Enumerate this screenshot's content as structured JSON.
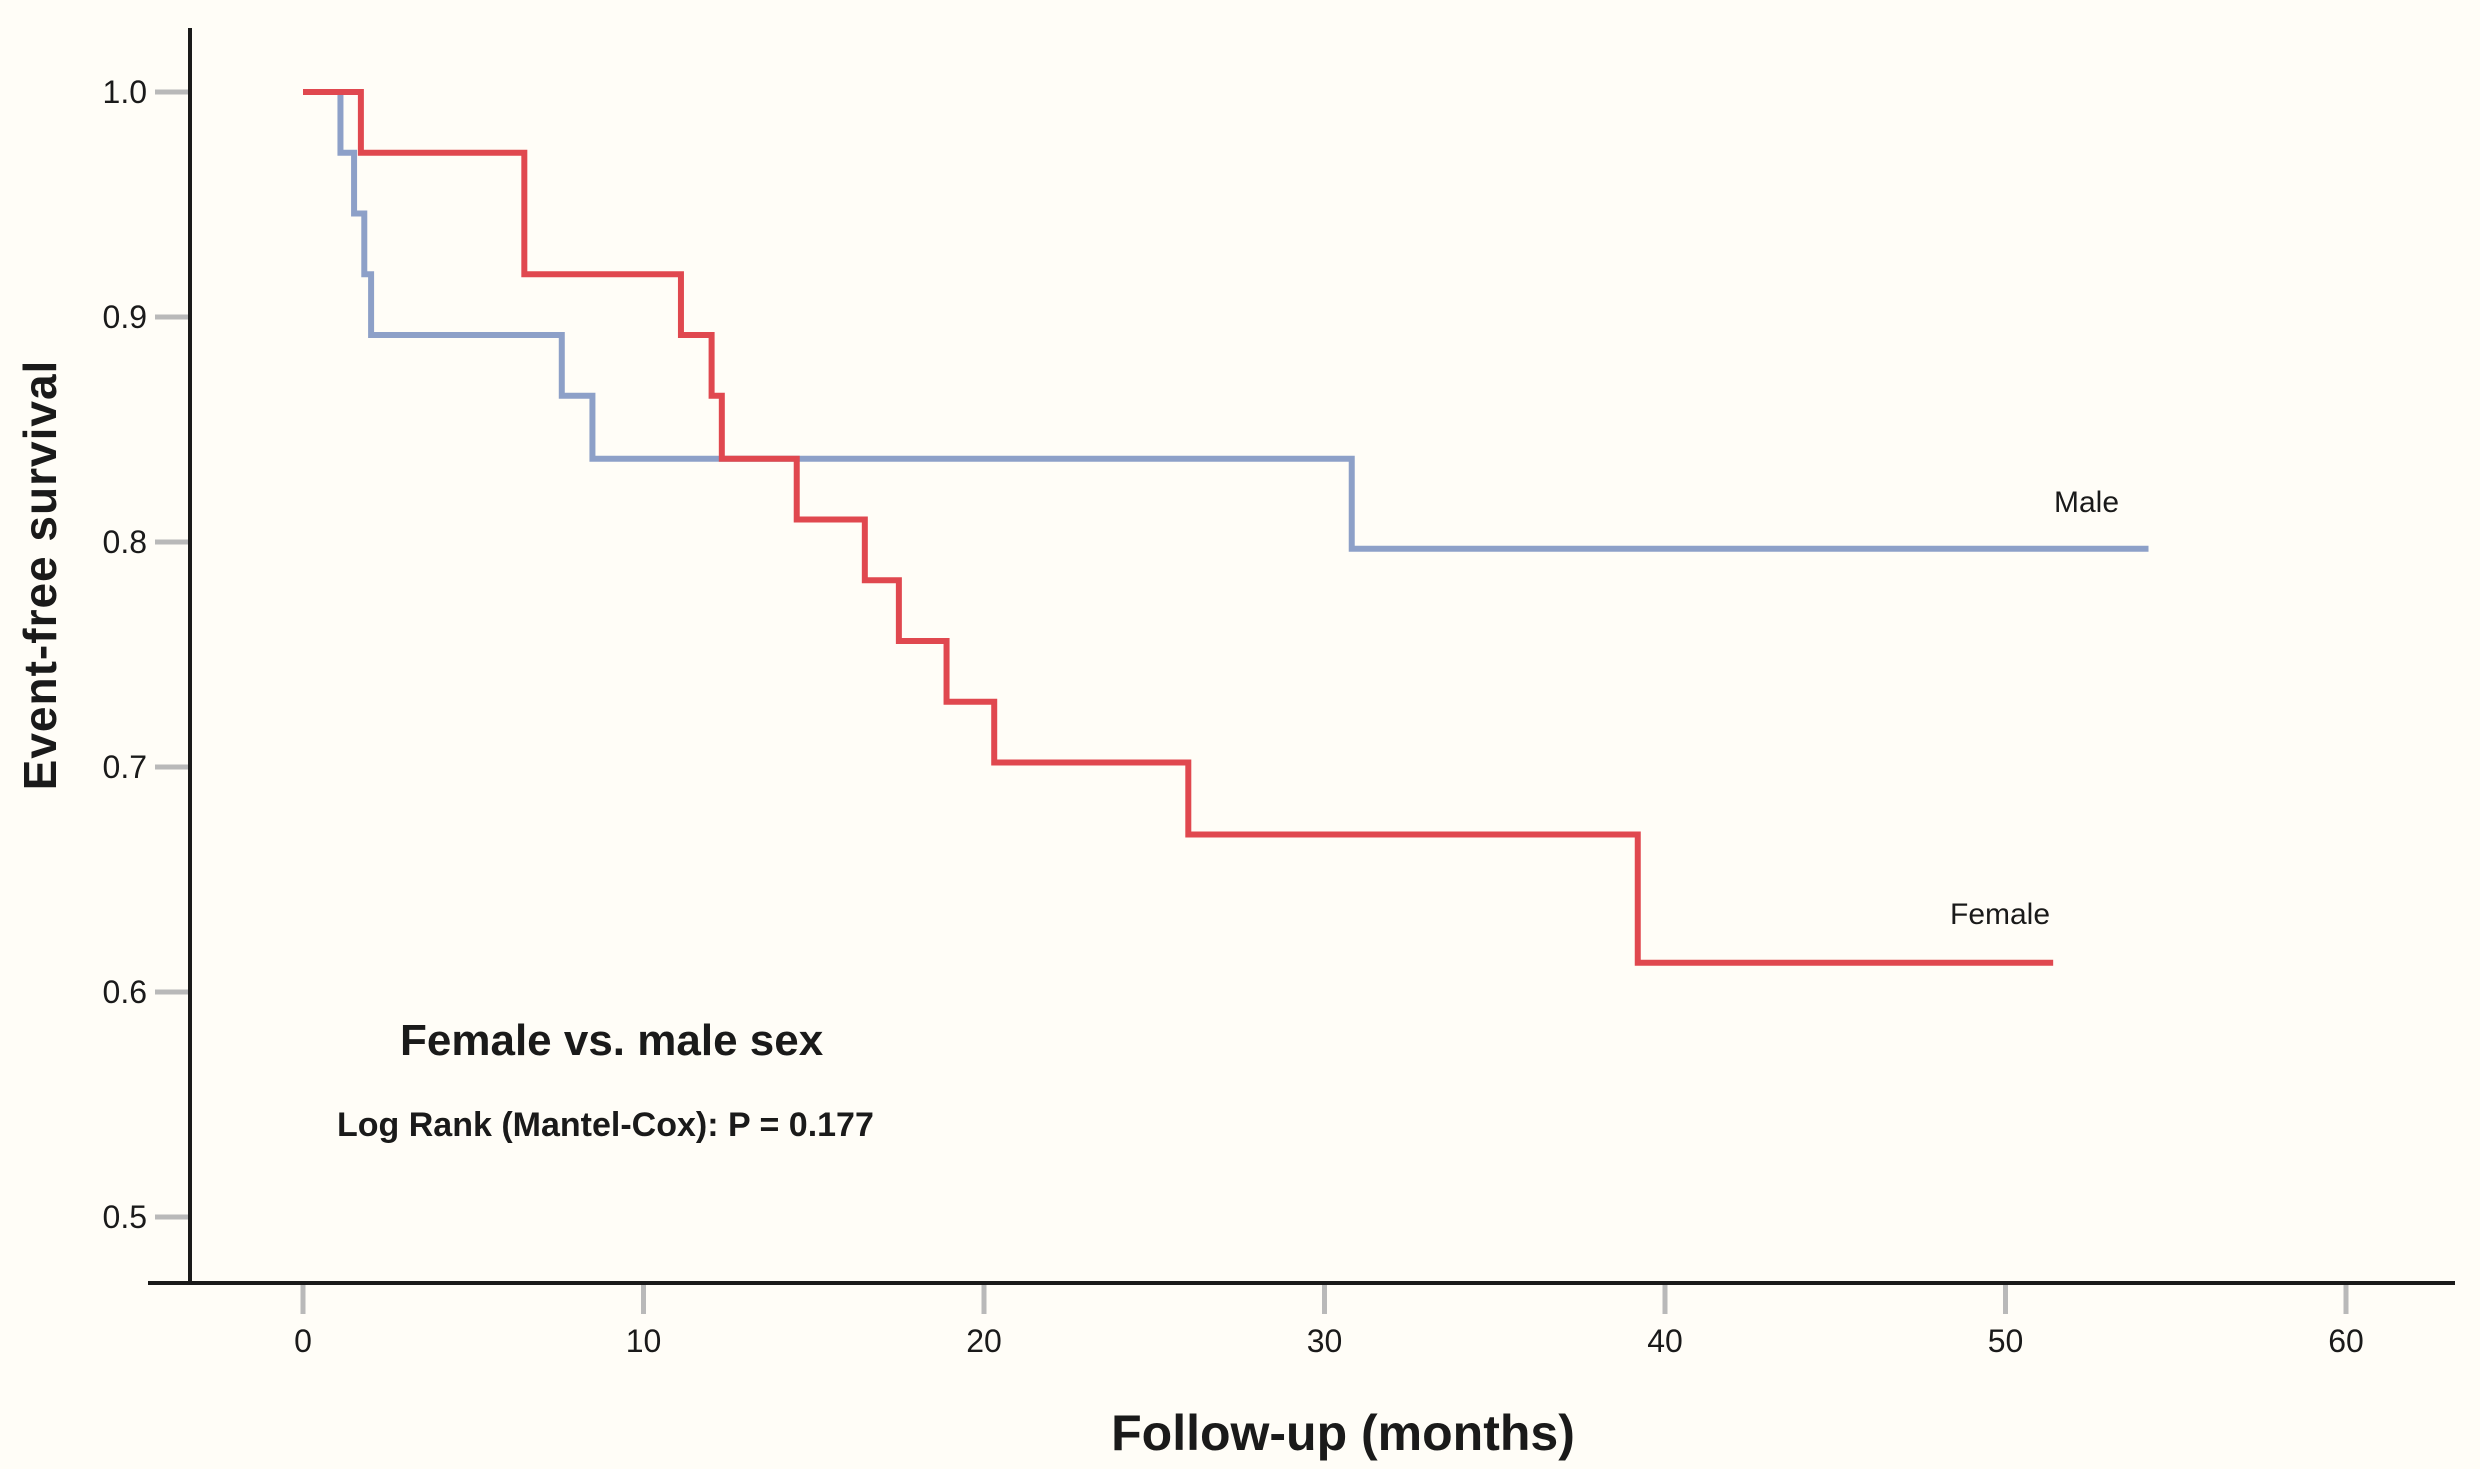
{
  "chart_data": {
    "type": "line",
    "subtype": "kaplan_meier_step",
    "title": "Female vs. male sex",
    "annotation": "Log Rank (Mantel-Cox): P = 0.177",
    "xlabel": "Follow-up (months)",
    "ylabel": "Event-free survival",
    "xlim": [
      -4.6,
      63.2
    ],
    "ylim": [
      0.468,
      1.028
    ],
    "grid": false,
    "legend_position": "inline labels at right end of each curve",
    "x_ticks": [
      {
        "label": "0",
        "value": 0
      },
      {
        "label": "10",
        "value": 10
      },
      {
        "label": "20",
        "value": 20
      },
      {
        "label": "30",
        "value": 30
      },
      {
        "label": "40",
        "value": 40
      },
      {
        "label": "50",
        "value": 50
      },
      {
        "label": "60",
        "value": 60
      }
    ],
    "y_ticks": [
      {
        "label": "1.0",
        "value": 1.0
      },
      {
        "label": "0.9",
        "value": 0.9
      },
      {
        "label": "0.8",
        "value": 0.8
      },
      {
        "label": "0.7",
        "value": 0.7
      },
      {
        "label": "0.6",
        "value": 0.6
      },
      {
        "label": "0.5",
        "value": 0.5
      }
    ],
    "colors": {
      "background": "#fffdf7",
      "axis": "#1a1a1a",
      "tick_marks": "#b9b9b9",
      "text": "#1a1a1a",
      "male": "#8da0c8",
      "female": "#e0484f"
    },
    "series": [
      {
        "name": "Male",
        "color": "#8da0c8",
        "steps": [
          [
            0,
            1.0
          ],
          [
            1.1,
            0.973
          ],
          [
            1.5,
            0.946
          ],
          [
            1.8,
            0.919
          ],
          [
            2.0,
            0.892
          ],
          [
            7.6,
            0.865
          ],
          [
            8.5,
            0.837
          ],
          [
            30.8,
            0.797
          ]
        ],
        "end_time": 54.2,
        "final_survival": 0.797
      },
      {
        "name": "Female",
        "color": "#e0484f",
        "steps": [
          [
            0,
            1.0
          ],
          [
            1.7,
            0.973
          ],
          [
            6.5,
            0.919
          ],
          [
            11.1,
            0.892
          ],
          [
            12.0,
            0.865
          ],
          [
            12.3,
            0.837
          ],
          [
            14.5,
            0.81
          ],
          [
            16.5,
            0.783
          ],
          [
            17.5,
            0.756
          ],
          [
            18.9,
            0.729
          ],
          [
            20.3,
            0.702
          ],
          [
            26.0,
            0.67
          ],
          [
            39.2,
            0.613
          ]
        ],
        "end_time": 51.4,
        "final_survival": 0.613
      }
    ]
  }
}
